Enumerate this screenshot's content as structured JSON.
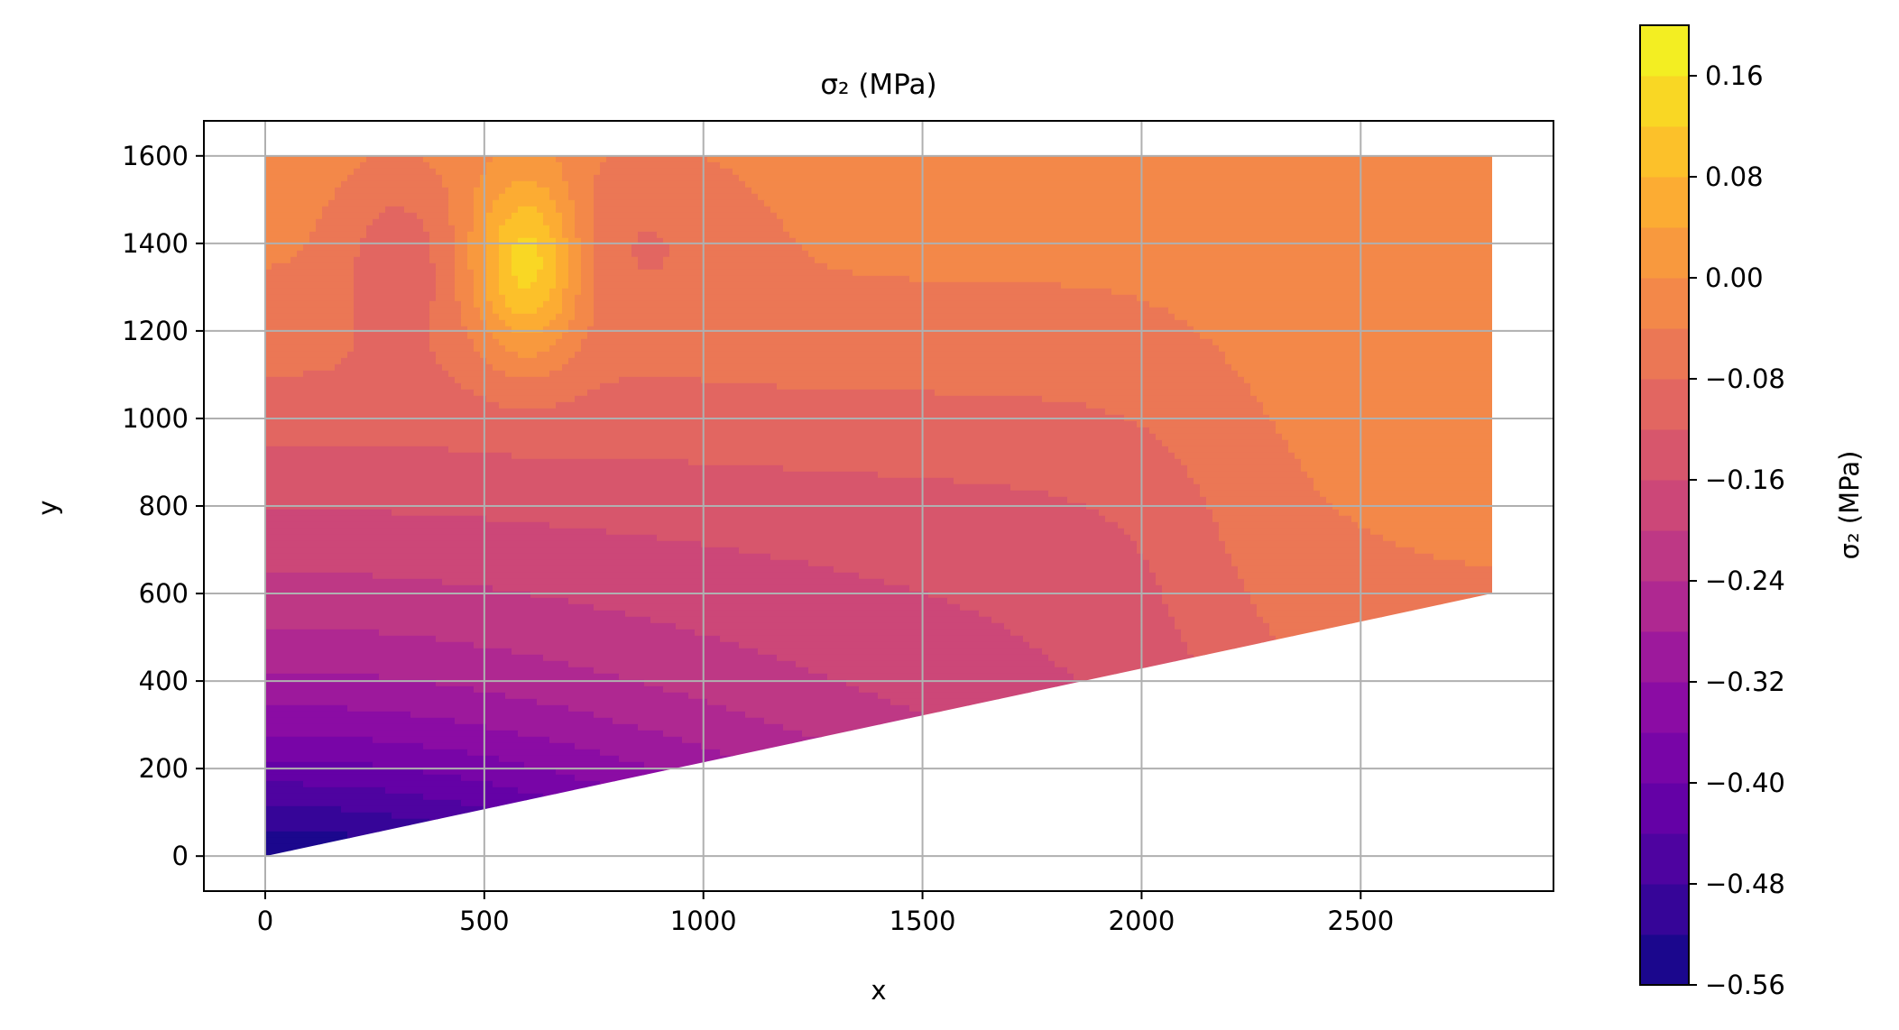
{
  "chart_data": {
    "type": "contour",
    "title": "σ₂ (MPa)",
    "xlabel": "x",
    "ylabel": "y",
    "xlim": [
      -140,
      2940
    ],
    "ylim": [
      -80,
      1680
    ],
    "xticks": [
      0,
      500,
      1000,
      1500,
      2000,
      2500
    ],
    "yticks": [
      0,
      200,
      400,
      600,
      800,
      1000,
      1200,
      1400,
      1600
    ],
    "grid": true,
    "colormap": "plasma",
    "domain_polygon": [
      [
        0,
        0
      ],
      [
        2800,
        600
      ],
      [
        2800,
        1600
      ],
      [
        0,
        1600
      ]
    ],
    "colorbar": {
      "label": "σ₂ (MPa)",
      "min": -0.56,
      "max": 0.2,
      "step": 0.04,
      "ticks": [
        -0.56,
        -0.48,
        -0.4,
        -0.32,
        -0.24,
        -0.16,
        -0.08,
        0.0,
        0.08,
        0.16
      ],
      "tick_labels": [
        "−0.56",
        "−0.48",
        "−0.40",
        "−0.32",
        "−0.24",
        "−0.16",
        "−0.08",
        "0.00",
        "0.08",
        "0.16"
      ]
    },
    "field_samples": {
      "x": [
        0,
        500,
        1000,
        1500,
        2000,
        2500,
        2800
      ],
      "y": [
        0,
        200,
        400,
        600,
        800,
        1000,
        1200,
        1400,
        1600
      ],
      "sigma2_left_edge_by_y": [
        -0.54,
        -0.42,
        -0.33,
        -0.22,
        -0.14,
        -0.08,
        -0.02,
        -0.01,
        -0.01
      ],
      "sigma2_at_y1600_by_x": [
        -0.01,
        -0.05,
        -0.03,
        -0.03,
        -0.03,
        -0.02,
        -0.02
      ],
      "sigma2_at_x2500_by_y": [
        null,
        null,
        null,
        -0.05,
        -0.02,
        -0.02,
        -0.02,
        -0.02,
        -0.02
      ],
      "hotspot": {
        "x": 600,
        "y": 1350,
        "value": 0.16
      },
      "low_lobes": [
        {
          "x": 300,
          "y": 1350,
          "value": -0.07
        },
        {
          "x": 820,
          "y": 1350,
          "value": -0.06
        }
      ]
    }
  }
}
